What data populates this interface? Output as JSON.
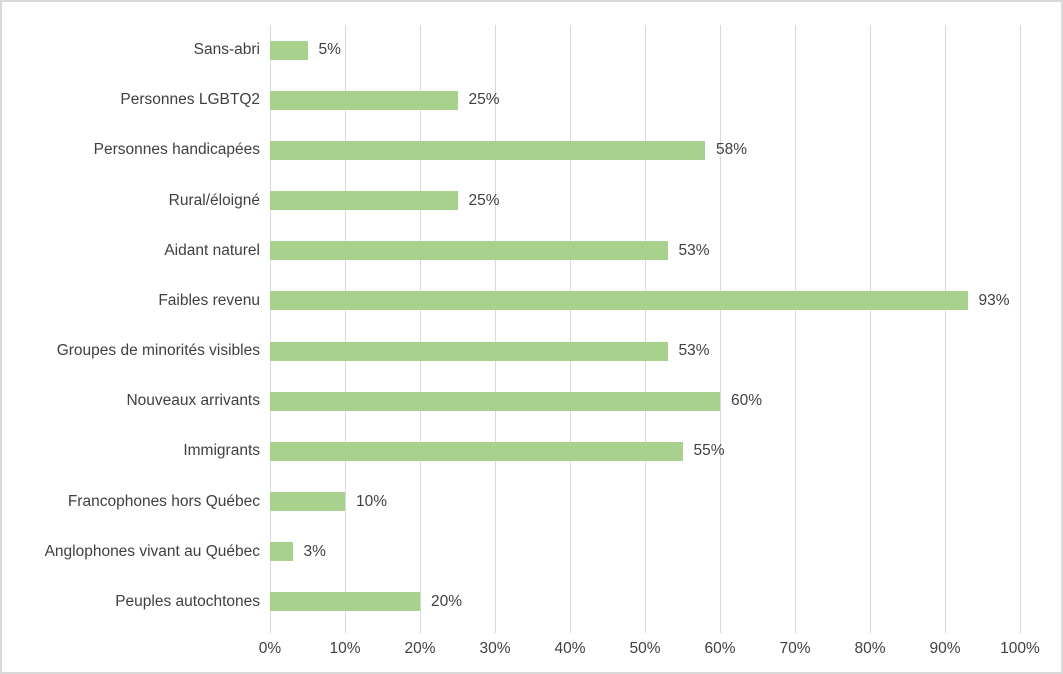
{
  "chart": {
    "background_color": "#FFFFFF",
    "frame_border_color": "#D9D9D9",
    "bar_color": "#A9D18E",
    "gridline_color": "#D9D9D9",
    "text_color": "#404040"
  },
  "chart_data": {
    "type": "bar",
    "orientation": "horizontal",
    "title": "",
    "subtitle": "",
    "xlabel": "",
    "ylabel": "",
    "xlim": [
      0,
      100
    ],
    "grid": "vertical-only",
    "legend": "none",
    "x_tick_values": [
      0,
      10,
      20,
      30,
      40,
      50,
      60,
      70,
      80,
      90,
      100
    ],
    "x_tick_labels": [
      "0%",
      "10%",
      "20%",
      "30%",
      "40%",
      "50%",
      "60%",
      "70%",
      "80%",
      "90%",
      "100%"
    ],
    "categories": [
      "Sans-abri",
      "Personnes LGBTQ2",
      "Personnes handicapées",
      "Rural/éloigné",
      "Aidant naturel",
      "Faibles revenu",
      "Groupes de minorités visibles",
      "Nouveaux arrivants",
      "Immigrants",
      "Francophones hors Québec",
      "Anglophones vivant au Québec",
      "Peuples autochtones"
    ],
    "values": [
      5,
      25,
      58,
      25,
      53,
      93,
      53,
      60,
      55,
      10,
      3,
      20
    ],
    "data_labels": [
      "5%",
      "25%",
      "58%",
      "25%",
      "53%",
      "93%",
      "53%",
      "60%",
      "55%",
      "10%",
      "3%",
      "20%"
    ]
  }
}
